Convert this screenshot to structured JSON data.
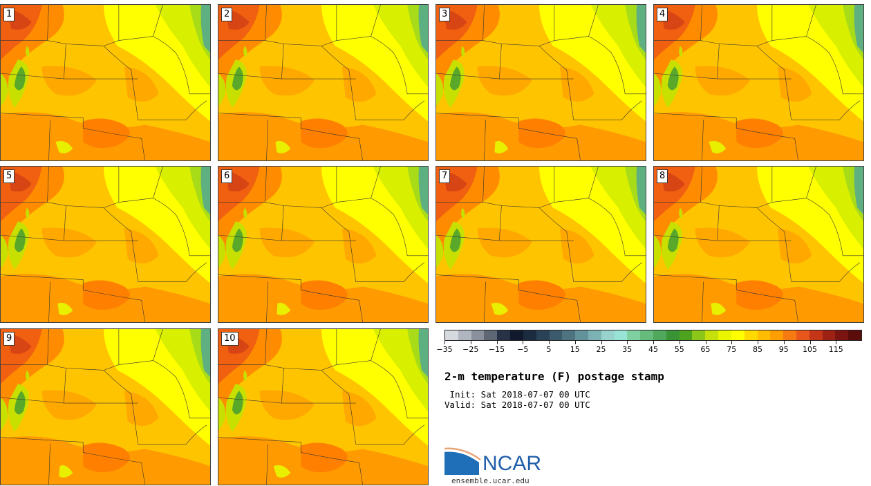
{
  "panels": [
    {
      "label": "1"
    },
    {
      "label": "2"
    },
    {
      "label": "3"
    },
    {
      "label": "4"
    },
    {
      "label": "5"
    },
    {
      "label": "6"
    },
    {
      "label": "7"
    },
    {
      "label": "8"
    },
    {
      "label": "9"
    },
    {
      "label": "10"
    }
  ],
  "colorbar": {
    "tick_labels": [
      "−35",
      "−25",
      "−15",
      "−5",
      "5",
      "15",
      "25",
      "35",
      "45",
      "55",
      "65",
      "75",
      "85",
      "95",
      "105",
      "115"
    ],
    "colors": [
      "#d6dadf",
      "#b0b6bf",
      "#8a919c",
      "#5f6775",
      "#283246",
      "#101a2c",
      "#1b2c40",
      "#2a4256",
      "#3b5a6c",
      "#4e7482",
      "#62929a",
      "#7cb2b4",
      "#97d3cc",
      "#98e3d6",
      "#7fcfa0",
      "#67bb7d",
      "#4fa85c",
      "#3a9436",
      "#4ea31e",
      "#8cc61a",
      "#c5e00a",
      "#eaf500",
      "#ffff00",
      "#ffd900",
      "#ffbc00",
      "#ff9e00",
      "#f57a12",
      "#e8561c",
      "#c53518",
      "#9e2214",
      "#7a1410",
      "#5a0d0a"
    ]
  },
  "title": "2-m temperature (F) postage stamp",
  "init": " Init: Sat 2018-07-07 00 UTC",
  "valid": "Valid: Sat 2018-07-07 00 UTC",
  "logo": {
    "name": "NCAR",
    "url": "ensemble.ucar.edu",
    "color": "#1f5ea8"
  }
}
